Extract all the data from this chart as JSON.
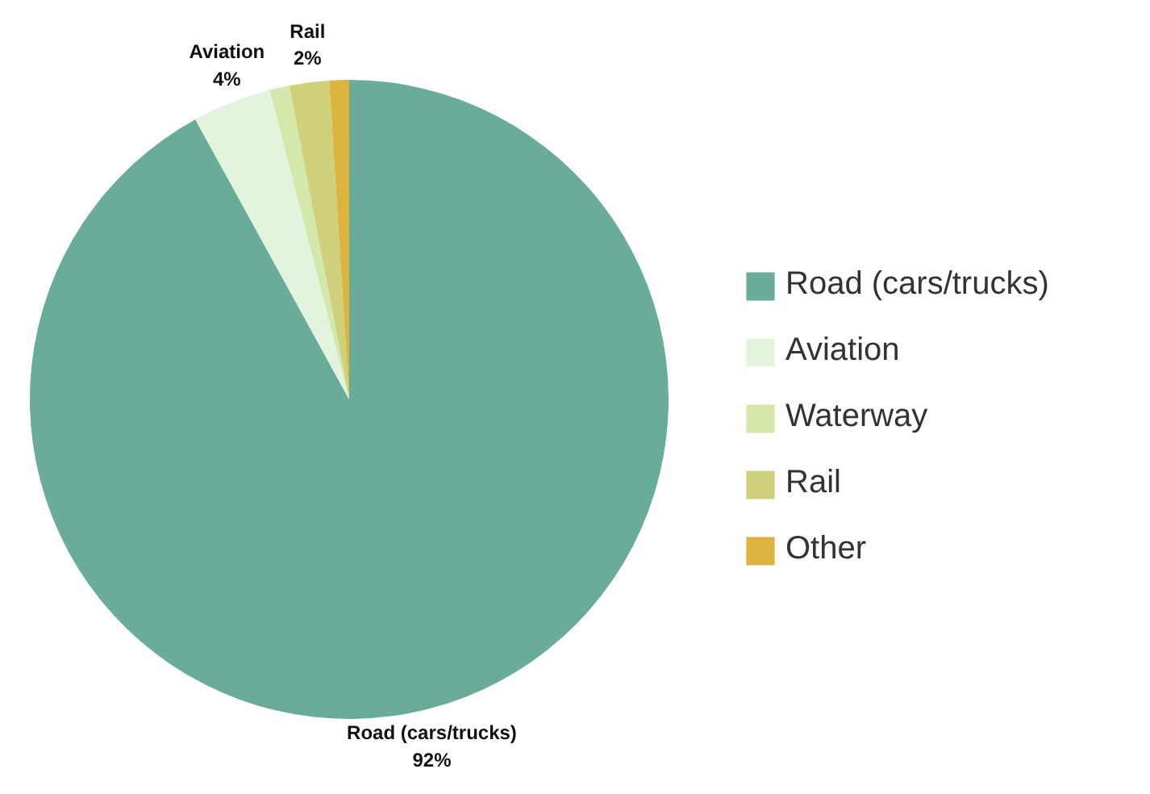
{
  "chart_data": {
    "type": "pie",
    "categories": [
      "Road (cars/trucks)",
      "Aviation",
      "Waterway",
      "Rail",
      "Other"
    ],
    "values": [
      92,
      4,
      1,
      2,
      1
    ],
    "colors": [
      "#6aac9a",
      "#e2f3de",
      "#d4e8ab",
      "#cfd07c",
      "#dcb43e"
    ],
    "value_labels": [
      "92%",
      "4%",
      null,
      "2%",
      null
    ],
    "legend": "right"
  }
}
